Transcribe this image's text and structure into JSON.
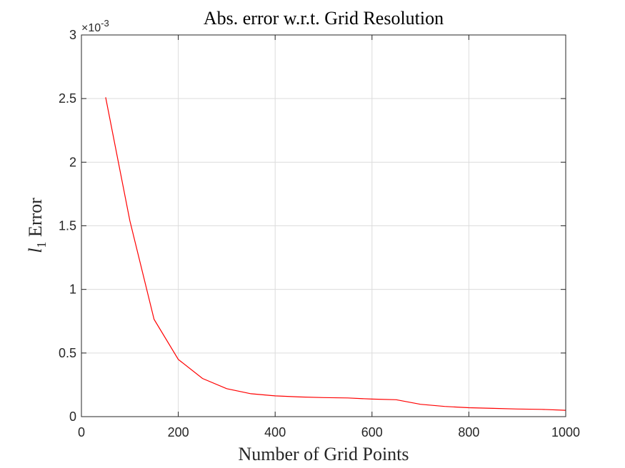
{
  "chart_data": {
    "type": "line",
    "title": "Abs. error w.r.t. Grid Resolution",
    "xlabel": "Number of Grid Points",
    "ylabel_main": "l",
    "ylabel_sub": "1",
    "ylabel_rest": " Error",
    "y_exponent_base": "×10",
    "y_exponent_power": "-3",
    "xlim": [
      0,
      1000
    ],
    "ylim": [
      0,
      3
    ],
    "x_ticks": [
      0,
      200,
      400,
      600,
      800,
      1000
    ],
    "x_tick_labels": [
      "0",
      "200",
      "400",
      "600",
      "800",
      "1000"
    ],
    "y_ticks": [
      0,
      0.5,
      1,
      1.5,
      2,
      2.5,
      3
    ],
    "y_tick_labels": [
      "0",
      "0.5",
      "1",
      "1.5",
      "2",
      "2.5",
      "3"
    ],
    "grid": true,
    "series": [
      {
        "color": "#ff0000",
        "x": [
          50,
          100,
          150,
          200,
          250,
          300,
          350,
          400,
          450,
          500,
          550,
          600,
          650,
          700,
          750,
          800,
          850,
          900,
          950,
          1000
        ],
        "y": [
          2.51,
          1.54,
          0.765,
          0.45,
          0.3,
          0.22,
          0.18,
          0.163,
          0.155,
          0.15,
          0.147,
          0.138,
          0.133,
          0.097,
          0.08,
          0.07,
          0.065,
          0.06,
          0.057,
          0.05
        ]
      }
    ]
  }
}
